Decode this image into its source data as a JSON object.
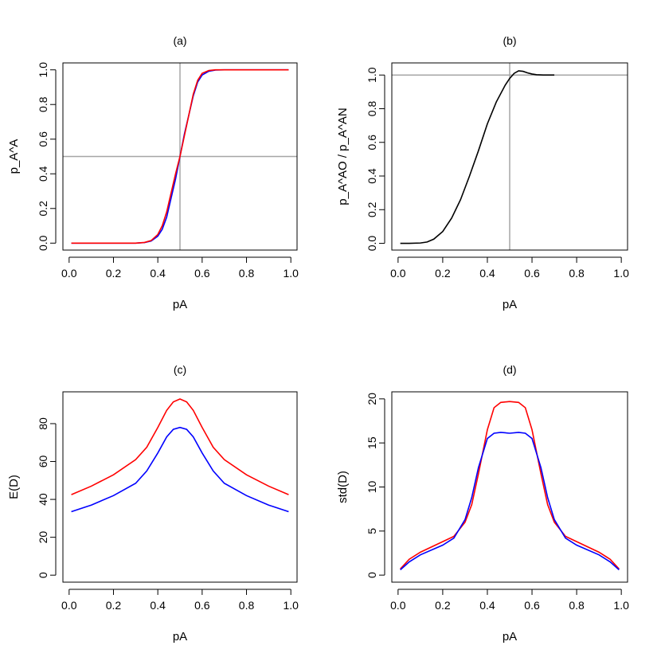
{
  "chart_data": [
    {
      "type": "line",
      "title": "(a)",
      "xlabel": "pA",
      "ylabel": "p_A^A",
      "xlim": [
        0,
        1
      ],
      "ylim": [
        0,
        1
      ],
      "xticks": [
        "0.0",
        "0.2",
        "0.4",
        "0.6",
        "0.8",
        "1.0"
      ],
      "yticks": [
        "0.0",
        "0.2",
        "0.4",
        "0.6",
        "0.8",
        "1.0"
      ],
      "reference_lines": {
        "v": 0.5,
        "h": 0.5,
        "color": "#a6a6a6"
      },
      "grid": false,
      "series": [
        {
          "color": "#0000ff",
          "x": [
            0.01,
            0.1,
            0.2,
            0.3,
            0.34,
            0.37,
            0.4,
            0.42,
            0.44,
            0.46,
            0.48,
            0.5,
            0.52,
            0.54,
            0.56,
            0.58,
            0.6,
            0.63,
            0.66,
            0.7,
            0.8,
            0.9,
            0.99
          ],
          "y": [
            0,
            0,
            0,
            0,
            0.003,
            0.012,
            0.04,
            0.08,
            0.15,
            0.26,
            0.37,
            0.5,
            0.63,
            0.74,
            0.85,
            0.93,
            0.97,
            0.992,
            0.999,
            1,
            1,
            1,
            1
          ]
        },
        {
          "color": "#ff0000",
          "x": [
            0.01,
            0.1,
            0.2,
            0.3,
            0.34,
            0.37,
            0.4,
            0.42,
            0.44,
            0.46,
            0.48,
            0.5,
            0.52,
            0.54,
            0.56,
            0.58,
            0.6,
            0.63,
            0.66,
            0.7,
            0.8,
            0.9,
            0.99
          ],
          "y": [
            0,
            0,
            0,
            0,
            0.004,
            0.015,
            0.05,
            0.1,
            0.18,
            0.29,
            0.4,
            0.5,
            0.62,
            0.74,
            0.86,
            0.94,
            0.98,
            0.996,
            1,
            1,
            1,
            1,
            1
          ]
        }
      ]
    },
    {
      "type": "line",
      "title": "(b)",
      "xlabel": "pA",
      "ylabel": "p_A^AO / p_A^AN",
      "xlim": [
        0,
        1
      ],
      "ylim": [
        0,
        1.02
      ],
      "xticks": [
        "0.0",
        "0.2",
        "0.4",
        "0.6",
        "0.8",
        "1.0"
      ],
      "yticks": [
        "0.0",
        "0.2",
        "0.4",
        "0.6",
        "0.8",
        "1.0"
      ],
      "reference_lines": {
        "v": 0.5,
        "h": 1.0,
        "color": "#a6a6a6"
      },
      "grid": false,
      "series": [
        {
          "color": "#000000",
          "x": [
            0.01,
            0.05,
            0.1,
            0.13,
            0.16,
            0.2,
            0.24,
            0.28,
            0.32,
            0.36,
            0.4,
            0.44,
            0.48,
            0.5,
            0.52,
            0.54,
            0.56,
            0.58,
            0.6,
            0.62,
            0.65,
            0.7
          ],
          "y": [
            0,
            0,
            0.002,
            0.008,
            0.025,
            0.07,
            0.15,
            0.26,
            0.4,
            0.55,
            0.71,
            0.84,
            0.94,
            0.98,
            1.01,
            1.025,
            1.022,
            1.013,
            1.006,
            1.002,
            1,
            1
          ]
        }
      ]
    },
    {
      "type": "line",
      "title": "(c)",
      "xlabel": "pA",
      "ylabel": "E(D)",
      "xlim": [
        0,
        1
      ],
      "ylim": [
        0,
        93
      ],
      "xticks": [
        "0.0",
        "0.2",
        "0.4",
        "0.6",
        "0.8",
        "1.0"
      ],
      "yticks": [
        "0",
        "20",
        "40",
        "60",
        "80"
      ],
      "grid": false,
      "series": [
        {
          "color": "#ff0000",
          "x": [
            0.01,
            0.1,
            0.2,
            0.3,
            0.35,
            0.4,
            0.44,
            0.47,
            0.5,
            0.53,
            0.56,
            0.6,
            0.65,
            0.7,
            0.8,
            0.9,
            0.99
          ],
          "y": [
            42.5,
            47,
            53,
            61,
            67.5,
            78,
            87,
            91.5,
            93,
            91.5,
            87,
            78,
            67.5,
            61,
            53,
            47,
            42.5
          ]
        },
        {
          "color": "#0000ff",
          "x": [
            0.01,
            0.1,
            0.2,
            0.3,
            0.35,
            0.4,
            0.44,
            0.47,
            0.5,
            0.53,
            0.56,
            0.6,
            0.65,
            0.7,
            0.8,
            0.9,
            0.99
          ],
          "y": [
            33.5,
            37,
            42,
            48.5,
            55,
            64.5,
            73,
            77,
            78,
            77,
            73,
            64.5,
            55,
            48.5,
            42,
            37,
            33.5
          ]
        }
      ]
    },
    {
      "type": "line",
      "title": "(d)",
      "xlabel": "pA",
      "ylabel": "std(D)",
      "xlim": [
        0,
        1
      ],
      "ylim": [
        0,
        20
      ],
      "xticks": [
        "0.0",
        "0.2",
        "0.4",
        "0.6",
        "0.8",
        "1.0"
      ],
      "yticks": [
        "0",
        "5",
        "10",
        "15",
        "20"
      ],
      "grid": false,
      "series": [
        {
          "color": "#ff0000",
          "x": [
            0.01,
            0.05,
            0.1,
            0.2,
            0.25,
            0.3,
            0.33,
            0.36,
            0.4,
            0.43,
            0.46,
            0.5,
            0.54,
            0.57,
            0.6,
            0.64,
            0.67,
            0.7,
            0.75,
            0.8,
            0.9,
            0.95,
            0.99
          ],
          "y": [
            0.7,
            1.8,
            2.6,
            3.8,
            4.4,
            6,
            8,
            11.5,
            16.5,
            19,
            19.6,
            19.7,
            19.6,
            19,
            16.5,
            11.5,
            8,
            6,
            4.4,
            3.8,
            2.6,
            1.8,
            0.7
          ]
        },
        {
          "color": "#0000ff",
          "x": [
            0.01,
            0.05,
            0.1,
            0.2,
            0.25,
            0.3,
            0.33,
            0.36,
            0.4,
            0.43,
            0.46,
            0.5,
            0.54,
            0.57,
            0.6,
            0.64,
            0.67,
            0.7,
            0.75,
            0.8,
            0.9,
            0.95,
            0.99
          ],
          "y": [
            0.6,
            1.5,
            2.3,
            3.4,
            4.2,
            6.3,
            8.8,
            12.2,
            15.5,
            16.1,
            16.2,
            16.1,
            16.2,
            16.1,
            15.5,
            12.2,
            8.8,
            6.3,
            4.2,
            3.4,
            2.3,
            1.5,
            0.6
          ]
        }
      ]
    }
  ]
}
